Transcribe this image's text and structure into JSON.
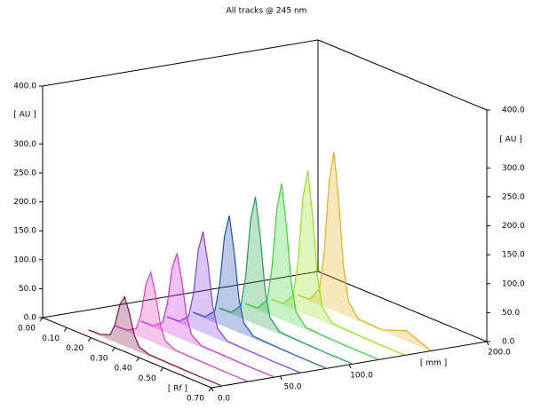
{
  "chart_data": {
    "type": "line3d",
    "title": "All tracks @ 245 nm",
    "y_label": "[ AU ]",
    "y2_label": "[ AU ]",
    "x_label": "[ Rf ]",
    "z_label": "[ mm ]",
    "xlim": [
      0,
      0.7
    ],
    "ylim": [
      0,
      400
    ],
    "zlim": [
      0,
      200
    ],
    "yticks": [
      {
        "value": 0,
        "label": "0.0"
      },
      {
        "value": 50,
        "label": "50.0"
      },
      {
        "value": 100,
        "label": "100.0"
      },
      {
        "value": 150,
        "label": "150.0"
      },
      {
        "value": 200,
        "label": "200.0"
      },
      {
        "value": 250,
        "label": "250.0"
      },
      {
        "value": 300,
        "label": "300.0"
      },
      {
        "value": 400,
        "label": "400.0"
      }
    ],
    "y2ticks": [
      {
        "value": 0,
        "label": "0.0"
      },
      {
        "value": 50,
        "label": "50.0"
      },
      {
        "value": 100,
        "label": "100.0"
      },
      {
        "value": 150,
        "label": "150.0"
      },
      {
        "value": 200,
        "label": "200.0"
      },
      {
        "value": 250,
        "label": "250.0"
      },
      {
        "value": 300,
        "label": "300.0"
      },
      {
        "value": 400,
        "label": "400.0"
      }
    ],
    "xticks": [
      {
        "value": 0,
        "label": "0.00"
      },
      {
        "value": 0.1,
        "label": "0.10"
      },
      {
        "value": 0.2,
        "label": "0.20"
      },
      {
        "value": 0.3,
        "label": "0.30"
      },
      {
        "value": 0.4,
        "label": "0.40"
      },
      {
        "value": 0.5,
        "label": "0.50"
      },
      {
        "value": 0.7,
        "label": "0.70"
      }
    ],
    "zticks": [
      {
        "value": 0,
        "label": "0.0"
      },
      {
        "value": 50,
        "label": "50.0"
      },
      {
        "value": 100,
        "label": "100.0"
      },
      {
        "value": 200,
        "label": "200.0"
      }
    ],
    "x": [
      0.15,
      0.2,
      0.24,
      0.26,
      0.28,
      0.3,
      0.32,
      0.34,
      0.36,
      0.4,
      0.5,
      0.6,
      0.7
    ],
    "series": [
      {
        "color": "#7a1048",
        "z": 7,
        "values": [
          2,
          3,
          9,
          30,
          68,
          85,
          60,
          26,
          9,
          3,
          2,
          1,
          1
        ]
      },
      {
        "color": "#e040b8",
        "z": 26,
        "values": [
          2,
          3,
          12,
          42,
          96,
          120,
          84,
          36,
          12,
          3,
          2,
          1,
          1
        ]
      },
      {
        "color": "#d030d8",
        "z": 45,
        "values": [
          2,
          3,
          15,
          51,
          116,
          145,
          102,
          44,
          15,
          3,
          2,
          1,
          1
        ]
      },
      {
        "color": "#8040e0",
        "z": 64,
        "values": [
          2,
          3,
          18,
          61,
          140,
          175,
          123,
          53,
          18,
          3,
          2,
          1,
          1
        ]
      },
      {
        "color": "#2050b0",
        "z": 83,
        "values": [
          2,
          3,
          20,
          68,
          156,
          195,
          137,
          59,
          20,
          4,
          2,
          1,
          1
        ]
      },
      {
        "color": "#20a050",
        "z": 102,
        "values": [
          2,
          3,
          22,
          77,
          176,
          220,
          154,
          66,
          22,
          4,
          2,
          1,
          1
        ]
      },
      {
        "color": "#40d040",
        "z": 121,
        "values": [
          2,
          3,
          24,
          82,
          188,
          235,
          165,
          71,
          24,
          4,
          2,
          1,
          1
        ]
      },
      {
        "color": "#98e020",
        "z": 140,
        "values": [
          2,
          3,
          25,
          88,
          200,
          250,
          175,
          75,
          25,
          4,
          2,
          1,
          1
        ]
      },
      {
        "color": "#e0b020",
        "z": 159,
        "values": [
          2,
          3,
          28,
          96,
          220,
          275,
          193,
          83,
          28,
          4,
          2,
          18,
          1
        ]
      }
    ]
  }
}
